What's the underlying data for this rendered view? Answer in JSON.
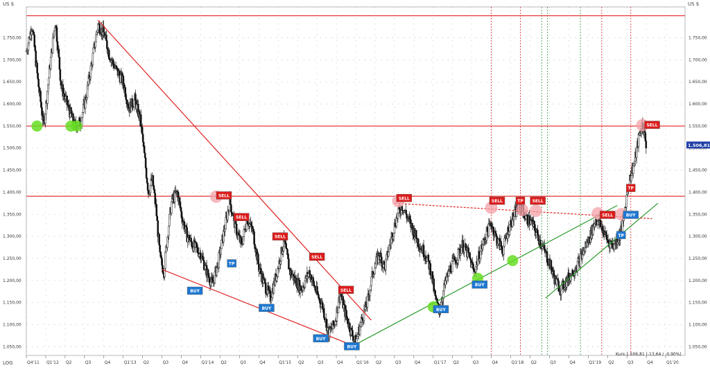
{
  "chart_data": {
    "type": "candlestick",
    "currency_label_left": "US $",
    "currency_label_right": "US $",
    "log_label": "LOG",
    "footer_text": "Kurs:1.506,81 (-13,64 / -0,90%)",
    "last_price_label": "1.506,81",
    "ylim": [
      1030,
      1820
    ],
    "y_ticks": [
      {
        "value": 1750,
        "label": "1.750,00"
      },
      {
        "value": 1700,
        "label": "1.700,00"
      },
      {
        "value": 1650,
        "label": "1.650,00"
      },
      {
        "value": 1600,
        "label": "1.600,00"
      },
      {
        "value": 1550,
        "label": "1.550,00"
      },
      {
        "value": 1500,
        "label": "1.500,00"
      },
      {
        "value": 1450,
        "label": "1.450,00"
      },
      {
        "value": 1400,
        "label": "1.400,00"
      },
      {
        "value": 1350,
        "label": "1.350,00"
      },
      {
        "value": 1300,
        "label": "1.300,00"
      },
      {
        "value": 1250,
        "label": "1.250,00"
      },
      {
        "value": 1200,
        "label": "1.200,00"
      },
      {
        "value": 1150,
        "label": "1.150,00"
      },
      {
        "value": 1100,
        "label": "1.100,00"
      },
      {
        "value": 1050,
        "label": "1.050,00"
      }
    ],
    "x_ticks": [
      {
        "t": 0.0,
        "label": "Q4'11"
      },
      {
        "t": 1.0,
        "label": "Q1'12"
      },
      {
        "t": 2.0,
        "label": "Q2"
      },
      {
        "t": 3.0,
        "label": "Q3"
      },
      {
        "t": 4.0,
        "label": "Q4"
      },
      {
        "t": 5.0,
        "label": "Q1'13"
      },
      {
        "t": 6.0,
        "label": "Q2"
      },
      {
        "t": 7.0,
        "label": "Q3"
      },
      {
        "t": 8.0,
        "label": "Q4"
      },
      {
        "t": 9.0,
        "label": "Q1'14"
      },
      {
        "t": 10.0,
        "label": "Q2"
      },
      {
        "t": 11.0,
        "label": "Q3"
      },
      {
        "t": 12.0,
        "label": "Q4"
      },
      {
        "t": 13.0,
        "label": "Q1'15"
      },
      {
        "t": 14.0,
        "label": "Q2"
      },
      {
        "t": 15.0,
        "label": "Q3"
      },
      {
        "t": 16.0,
        "label": "Q4"
      },
      {
        "t": 17.0,
        "label": "Q1'16"
      },
      {
        "t": 18.0,
        "label": "Q2"
      },
      {
        "t": 19.0,
        "label": "Q3"
      },
      {
        "t": 20.0,
        "label": "Q4"
      },
      {
        "t": 21.0,
        "label": "Q1'17"
      },
      {
        "t": 22.0,
        "label": "Q2"
      },
      {
        "t": 23.0,
        "label": "Q3"
      },
      {
        "t": 24.0,
        "label": "Q4"
      },
      {
        "t": 25.0,
        "label": "Q1'18"
      },
      {
        "t": 26.0,
        "label": "Q2"
      },
      {
        "t": 27.0,
        "label": "Q3"
      },
      {
        "t": 28.0,
        "label": "Q4"
      },
      {
        "t": 29.0,
        "label": "Q1'19"
      },
      {
        "t": 30.0,
        "label": "Q2"
      },
      {
        "t": 31.0,
        "label": "Q3"
      },
      {
        "t": 32.0,
        "label": "Q4"
      },
      {
        "t": 33.0,
        "label": "Q1'20"
      }
    ],
    "price_path": [
      [
        0.0,
        1720
      ],
      [
        0.3,
        1780
      ],
      [
        0.6,
        1650
      ],
      [
        0.9,
        1550
      ],
      [
        1.2,
        1680
      ],
      [
        1.5,
        1790
      ],
      [
        1.8,
        1640
      ],
      [
        2.1,
        1600
      ],
      [
        2.5,
        1550
      ],
      [
        2.8,
        1560
      ],
      [
        3.1,
        1620
      ],
      [
        3.4,
        1700
      ],
      [
        3.7,
        1780
      ],
      [
        4.0,
        1760
      ],
      [
        4.3,
        1710
      ],
      [
        4.6,
        1680
      ],
      [
        5.0,
        1650
      ],
      [
        5.3,
        1590
      ],
      [
        5.6,
        1610
      ],
      [
        5.9,
        1560
      ],
      [
        6.1,
        1480
      ],
      [
        6.3,
        1400
      ],
      [
        6.5,
        1430
      ],
      [
        6.7,
        1360
      ],
      [
        6.9,
        1250
      ],
      [
        7.1,
        1220
      ],
      [
        7.3,
        1310
      ],
      [
        7.5,
        1380
      ],
      [
        7.8,
        1400
      ],
      [
        8.0,
        1350
      ],
      [
        8.3,
        1300
      ],
      [
        8.6,
        1280
      ],
      [
        9.0,
        1260
      ],
      [
        9.3,
        1220
      ],
      [
        9.6,
        1190
      ],
      [
        9.9,
        1240
      ],
      [
        10.2,
        1310
      ],
      [
        10.5,
        1380
      ],
      [
        10.8,
        1320
      ],
      [
        11.1,
        1280
      ],
      [
        11.4,
        1340
      ],
      [
        11.7,
        1310
      ],
      [
        12.0,
        1230
      ],
      [
        12.3,
        1190
      ],
      [
        12.6,
        1160
      ],
      [
        13.0,
        1230
      ],
      [
        13.3,
        1290
      ],
      [
        13.6,
        1220
      ],
      [
        13.9,
        1200
      ],
      [
        14.2,
        1180
      ],
      [
        14.6,
        1220
      ],
      [
        15.0,
        1170
      ],
      [
        15.3,
        1140
      ],
      [
        15.6,
        1080
      ],
      [
        15.9,
        1100
      ],
      [
        16.2,
        1170
      ],
      [
        16.5,
        1120
      ],
      [
        16.8,
        1080
      ],
      [
        17.0,
        1060
      ],
      [
        17.3,
        1110
      ],
      [
        17.6,
        1150
      ],
      [
        17.9,
        1220
      ],
      [
        18.2,
        1260
      ],
      [
        18.5,
        1230
      ],
      [
        18.8,
        1290
      ],
      [
        19.1,
        1340
      ],
      [
        19.4,
        1370
      ],
      [
        19.7,
        1340
      ],
      [
        20.0,
        1310
      ],
      [
        20.3,
        1280
      ],
      [
        20.6,
        1260
      ],
      [
        20.9,
        1220
      ],
      [
        21.1,
        1160
      ],
      [
        21.3,
        1130
      ],
      [
        21.6,
        1190
      ],
      [
        21.9,
        1230
      ],
      [
        22.2,
        1250
      ],
      [
        22.5,
        1280
      ],
      [
        22.8,
        1260
      ],
      [
        23.1,
        1220
      ],
      [
        23.4,
        1260
      ],
      [
        23.7,
        1300
      ],
      [
        24.0,
        1330
      ],
      [
        24.3,
        1290
      ],
      [
        24.6,
        1270
      ],
      [
        24.9,
        1320
      ],
      [
        25.2,
        1350
      ],
      [
        25.5,
        1370
      ],
      [
        25.8,
        1340
      ],
      [
        26.1,
        1330
      ],
      [
        26.4,
        1300
      ],
      [
        26.7,
        1270
      ],
      [
        27.0,
        1240
      ],
      [
        27.3,
        1200
      ],
      [
        27.6,
        1180
      ],
      [
        27.9,
        1200
      ],
      [
        28.2,
        1220
      ],
      [
        28.5,
        1240
      ],
      [
        28.8,
        1270
      ],
      [
        29.1,
        1300
      ],
      [
        29.4,
        1340
      ],
      [
        29.7,
        1320
      ],
      [
        30.0,
        1290
      ],
      [
        30.3,
        1280
      ],
      [
        30.6,
        1300
      ],
      [
        30.8,
        1330
      ],
      [
        31.0,
        1400
      ],
      [
        31.2,
        1440
      ],
      [
        31.4,
        1470
      ],
      [
        31.6,
        1520
      ],
      [
        31.8,
        1555
      ],
      [
        32.0,
        1507
      ]
    ],
    "horizontal_lines": [
      {
        "value": 1800,
        "color": "#e02020"
      },
      {
        "value": 1550,
        "color": "#e02020"
      },
      {
        "value": 1391,
        "color": "#e02020"
      }
    ],
    "trend_lines": [
      {
        "from": [
          3.7,
          1790
        ],
        "to": [
          17.8,
          1110
        ],
        "color": "#e02020",
        "dash": false
      },
      {
        "from": [
          7.0,
          1225
        ],
        "to": [
          17.0,
          1050
        ],
        "color": "#e02020",
        "dash": false
      },
      {
        "from": [
          17.0,
          1055
        ],
        "to": [
          30.5,
          1370
        ],
        "color": "#2a9a2a",
        "dash": false
      },
      {
        "from": [
          26.8,
          1160
        ],
        "to": [
          32.6,
          1375
        ],
        "color": "#2a9a2a",
        "dash": false
      },
      {
        "from": [
          19.0,
          1375
        ],
        "to": [
          32.3,
          1340
        ],
        "color": "#e02020",
        "dash": true
      }
    ],
    "vertical_lines": [
      {
        "t": 24.0,
        "color": "#e02020"
      },
      {
        "t": 25.5,
        "color": "#e02020"
      },
      {
        "t": 26.6,
        "color": "#2a9a2a"
      },
      {
        "t": 26.9,
        "color": "#2a9a2a"
      },
      {
        "t": 28.6,
        "color": "#2a9a2a"
      },
      {
        "t": 29.7,
        "color": "#e02020"
      },
      {
        "t": 31.2,
        "color": "#e02020"
      }
    ],
    "green_circles": [
      [
        0.55,
        1550
      ],
      [
        2.3,
        1550
      ],
      [
        2.6,
        1550
      ],
      [
        21.0,
        1140
      ],
      [
        23.3,
        1205
      ],
      [
        25.1,
        1245
      ]
    ],
    "pink_circles": [
      [
        9.8,
        1390
      ],
      [
        19.2,
        1380
      ],
      [
        24.0,
        1365
      ],
      [
        25.6,
        1360
      ],
      [
        26.3,
        1358
      ],
      [
        29.5,
        1352
      ],
      [
        30.7,
        1350
      ],
      [
        31.8,
        1552
      ]
    ],
    "signals": [
      {
        "t": 10.2,
        "v": 1392,
        "type": "SELL"
      },
      {
        "t": 11.1,
        "v": 1343,
        "type": "SELL"
      },
      {
        "t": 13.1,
        "v": 1299,
        "type": "SELL"
      },
      {
        "t": 15.0,
        "v": 1253,
        "type": "SELL"
      },
      {
        "t": 16.5,
        "v": 1178,
        "type": "SELL"
      },
      {
        "t": 19.5,
        "v": 1386,
        "type": "SELL"
      },
      {
        "t": 24.3,
        "v": 1380,
        "type": "SELL"
      },
      {
        "t": 25.5,
        "v": 1380,
        "type": "TP"
      },
      {
        "t": 26.4,
        "v": 1380,
        "type": "SELL"
      },
      {
        "t": 30.0,
        "v": 1348,
        "type": "SELL"
      },
      {
        "t": 31.2,
        "v": 1409,
        "type": "TP"
      },
      {
        "t": 32.3,
        "v": 1552,
        "type": "SELL"
      },
      {
        "t": 31.2,
        "v": 1348,
        "type": "BUY"
      },
      {
        "t": 30.7,
        "v": 1302,
        "type": "TP"
      },
      {
        "t": 10.6,
        "v": 1238,
        "type": "TP"
      },
      {
        "t": 8.7,
        "v": 1176,
        "type": "BUY"
      },
      {
        "t": 12.4,
        "v": 1137,
        "type": "BUY"
      },
      {
        "t": 15.2,
        "v": 1068,
        "type": "BUY"
      },
      {
        "t": 16.8,
        "v": 1050,
        "type": "BUY"
      },
      {
        "t": 21.4,
        "v": 1134,
        "type": "BUY"
      },
      {
        "t": 23.4,
        "v": 1190,
        "type": "BUY"
      }
    ]
  }
}
